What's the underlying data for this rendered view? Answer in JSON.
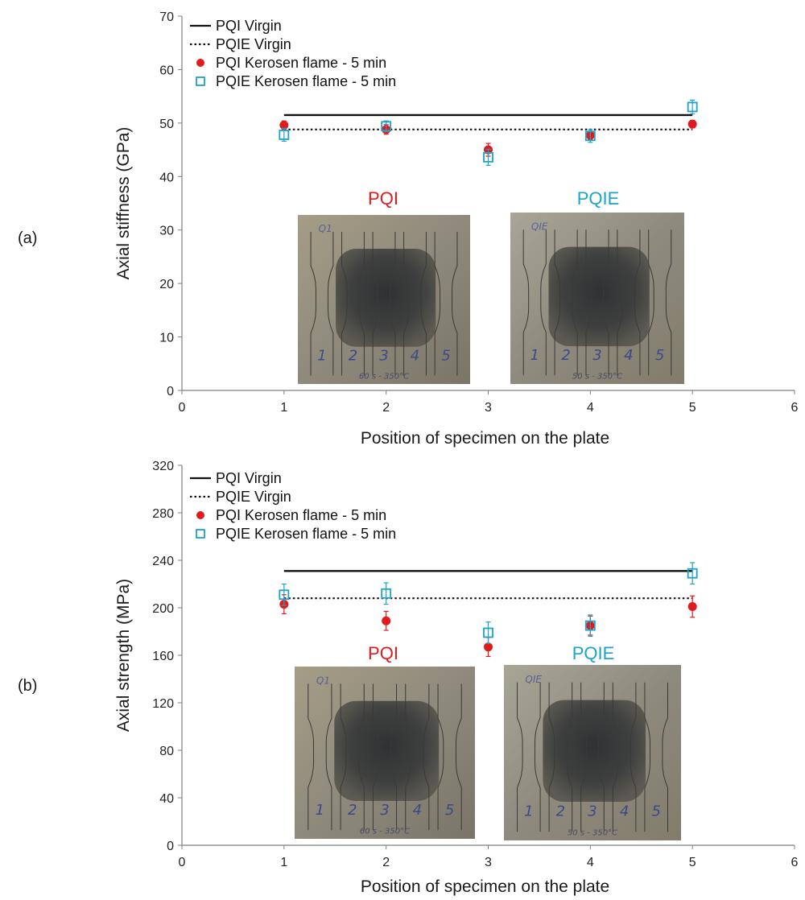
{
  "chart_data": [
    {
      "type": "scatter",
      "panel_label": "(a)",
      "xlabel": "Position of specimen on the plate",
      "ylabel": "Axial stiffness (GPa)",
      "xlim": [
        0,
        6
      ],
      "ylim": [
        0,
        70
      ],
      "xticks": [
        0,
        1,
        2,
        3,
        4,
        5,
        6
      ],
      "yticks": [
        0,
        10,
        20,
        30,
        40,
        50,
        60,
        70
      ],
      "legend_position": "top-left",
      "lines": [
        {
          "name": "PQI Virgin",
          "style": "solid",
          "color": "#111111",
          "x": [
            1,
            5
          ],
          "y": 51.5
        },
        {
          "name": "PQIE Virgin",
          "style": "dotted",
          "color": "#111111",
          "x": [
            1,
            5
          ],
          "y": 48.8
        }
      ],
      "series": [
        {
          "name": "PQI Kerosen flame - 5 min",
          "marker": "filled-circle",
          "color": "#e31a1c",
          "x": [
            1,
            2,
            3,
            4,
            5
          ],
          "y": [
            49.6,
            48.8,
            45.0,
            47.7,
            49.8
          ],
          "err": [
            0.8,
            0.9,
            1.2,
            0.8,
            0.7
          ]
        },
        {
          "name": "PQIE Kerosen flame - 5 min",
          "marker": "open-square",
          "color": "#1ca3c9",
          "x": [
            1,
            2,
            3,
            4,
            5
          ],
          "y": [
            47.8,
            49.4,
            43.6,
            47.6,
            53.0
          ],
          "err": [
            1.2,
            1.0,
            1.5,
            1.2,
            1.3
          ]
        }
      ],
      "insets": [
        {
          "title": "PQI",
          "title_color": "#e31a1c",
          "label": "Q1",
          "specimens": [
            "1",
            "2",
            "3",
            "4",
            "5"
          ],
          "caption": "60 s - 350°C"
        },
        {
          "title": "PQIE",
          "title_color": "#1ca3c9",
          "label": "QIE",
          "specimens": [
            "1",
            "2",
            "3",
            "4",
            "5"
          ],
          "caption": "50 s - 350°C"
        }
      ]
    },
    {
      "type": "scatter",
      "panel_label": "(b)",
      "xlabel": "Position of specimen on the plate",
      "ylabel": "Axial strength (MPa)",
      "xlim": [
        0,
        6
      ],
      "ylim": [
        0,
        320
      ],
      "xticks": [
        0,
        1,
        2,
        3,
        4,
        5,
        6
      ],
      "yticks": [
        0,
        40,
        80,
        120,
        160,
        200,
        240,
        280,
        320
      ],
      "legend_position": "top-left",
      "lines": [
        {
          "name": "PQI Virgin",
          "style": "solid",
          "color": "#111111",
          "x": [
            1,
            5
          ],
          "y": 231
        },
        {
          "name": "PQIE Virgin",
          "style": "dotted",
          "color": "#111111",
          "x": [
            1,
            5
          ],
          "y": 208
        }
      ],
      "series": [
        {
          "name": "PQI Kerosen flame - 5 min",
          "marker": "filled-circle",
          "color": "#e31a1c",
          "x": [
            1,
            2,
            3,
            4,
            5
          ],
          "y": [
            203,
            189,
            167,
            185,
            201
          ],
          "err": [
            8,
            8,
            8,
            8,
            9
          ]
        },
        {
          "name": "PQIE Kerosen flame - 5 min",
          "marker": "open-square",
          "color": "#1ca3c9",
          "x": [
            1,
            2,
            3,
            4,
            5
          ],
          "y": [
            211,
            212,
            179,
            185,
            229
          ],
          "err": [
            9,
            9,
            9,
            9,
            9
          ]
        }
      ],
      "insets": [
        {
          "title": "PQI",
          "title_color": "#e31a1c",
          "label": "Q1",
          "specimens": [
            "1",
            "2",
            "3",
            "4",
            "5"
          ],
          "caption": "60 s - 350°C"
        },
        {
          "title": "PQIE",
          "title_color": "#1ca3c9",
          "label": "QIE",
          "specimens": [
            "1",
            "2",
            "3",
            "4",
            "5"
          ],
          "caption": "50 s - 350°C"
        }
      ]
    }
  ]
}
